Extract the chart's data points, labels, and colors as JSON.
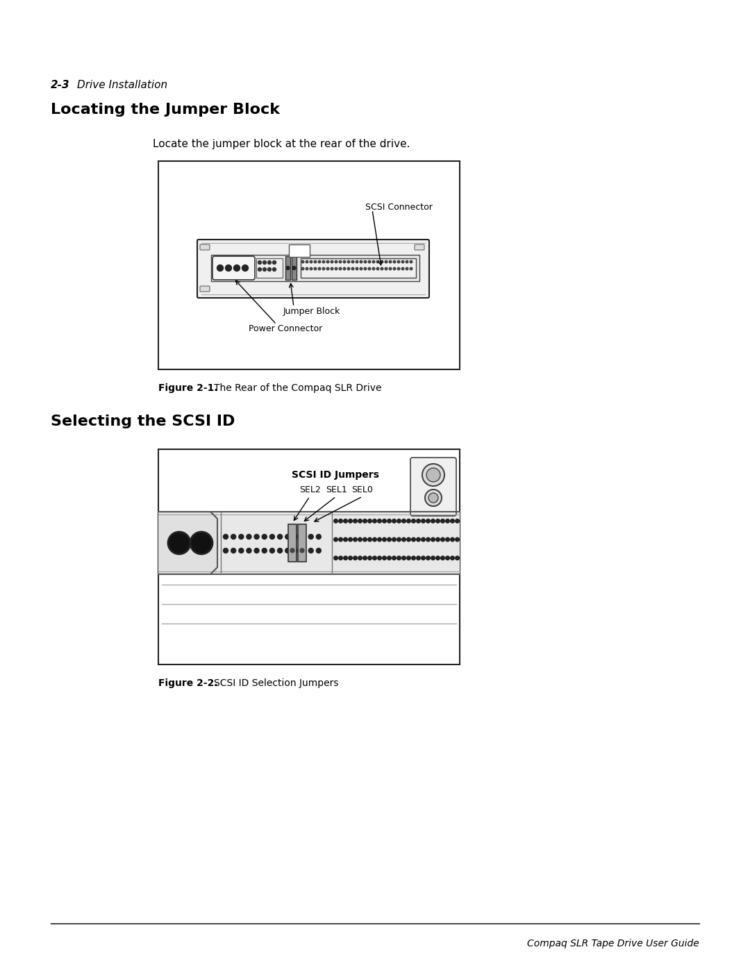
{
  "page_width": 10.8,
  "page_height": 13.97,
  "background_color": "#ffffff",
  "header_bold": "2-3",
  "header_italic": "Drive Installation",
  "section1_title": "Locating the Jumper Block",
  "section1_body": "Locate the jumper block at the rear of the drive.",
  "fig1_caption_bold": "Figure 2-1.",
  "fig1_caption_text": "The Rear of the Compaq SLR Drive",
  "section2_title": "Selecting the SCSI ID",
  "fig2_caption_bold": "Figure 2-2.",
  "fig2_caption_text": "SCSI ID Selection Jumpers",
  "footer_text": "Compaq SLR Tape Drive User Guide",
  "label_scsi_connector": "SCSI Connector",
  "label_jumper_block": "Jumper Block",
  "label_power_connector": "Power Connector",
  "label_scsi_id_jumpers": "SCSI ID Jumpers",
  "label_sel2": "SEL2",
  "label_sel1": "SEL1",
  "label_sel0": "SEL0"
}
